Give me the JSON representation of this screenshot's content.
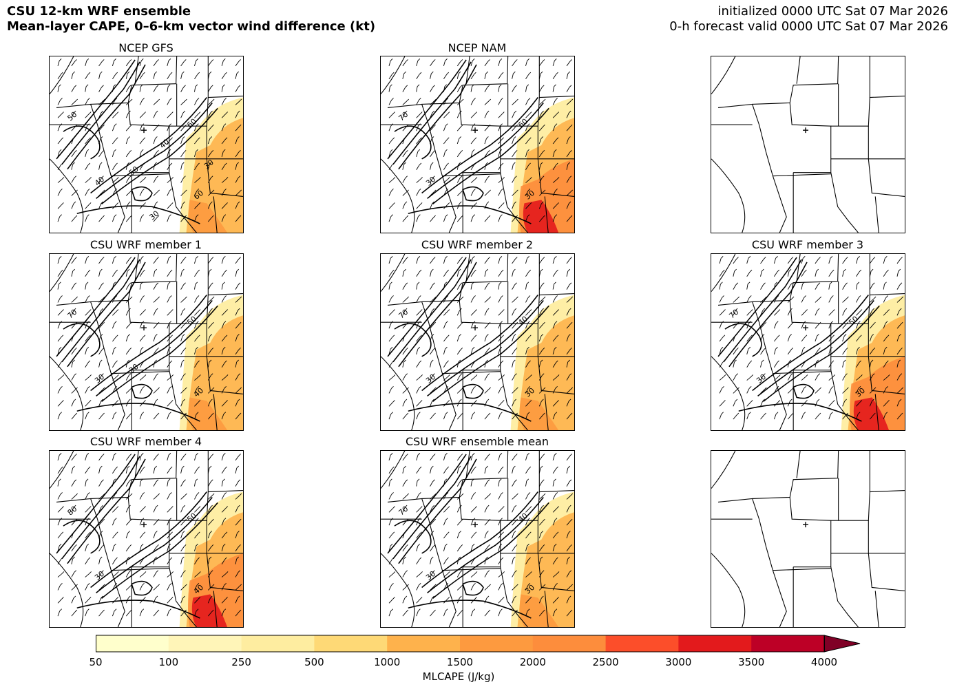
{
  "header": {
    "title_line1": "CSU 12-km WRF ensemble",
    "title_line2": "Mean-layer CAPE, 0–6-km vector wind difference (kt)",
    "init_line": "initialized 0000 UTC Sat 07 Mar 2026",
    "valid_line": "0-h forecast valid 0000 UTC Sat 07 Mar 2026"
  },
  "panels": [
    {
      "id": "gfs",
      "title": "NCEP GFS",
      "has_data": true,
      "cape": "moderate",
      "labels": [
        "50",
        "60",
        "60",
        "40",
        "50",
        "40",
        "30",
        "30"
      ]
    },
    {
      "id": "nam",
      "title": "NCEP NAM",
      "has_data": true,
      "cape": "strong",
      "labels": [
        "70",
        "60",
        "30",
        "30"
      ]
    },
    {
      "id": "blank1",
      "title": "",
      "has_data": false
    },
    {
      "id": "m1",
      "title": "CSU WRF member 1",
      "has_data": true,
      "cape": "moderate",
      "labels": [
        "70",
        "50",
        "40",
        "30",
        "30"
      ]
    },
    {
      "id": "m2",
      "title": "CSU WRF member 2",
      "has_data": true,
      "cape": "moderate",
      "labels": [
        "70",
        "40",
        "30",
        "30"
      ]
    },
    {
      "id": "m3",
      "title": "CSU WRF member 3",
      "has_data": true,
      "cape": "strong",
      "labels": [
        "70",
        "50",
        "30",
        "30"
      ]
    },
    {
      "id": "m4",
      "title": "CSU WRF member 4",
      "has_data": true,
      "cape": "strong",
      "labels": [
        "80",
        "50",
        "40",
        "30"
      ]
    },
    {
      "id": "mean",
      "title": "CSU WRF ensemble mean",
      "has_data": true,
      "cape": "moderate",
      "labels": [
        "70",
        "40",
        "30",
        "30"
      ]
    },
    {
      "id": "blank2",
      "title": "",
      "has_data": false
    }
  ],
  "colorbar": {
    "label": "MLCAPE (J/kg)",
    "ticks": [
      "50",
      "100",
      "250",
      "500",
      "1000",
      "1500",
      "2000",
      "2500",
      "3000",
      "3500",
      "4000"
    ],
    "colors": [
      "#ffffcc",
      "#fff5b8",
      "#feeda0",
      "#fed976",
      "#feb24c",
      "#fd9a3f",
      "#fd8d3c",
      "#fc4e2a",
      "#e31a1c",
      "#bd0026",
      "#800026"
    ]
  }
}
